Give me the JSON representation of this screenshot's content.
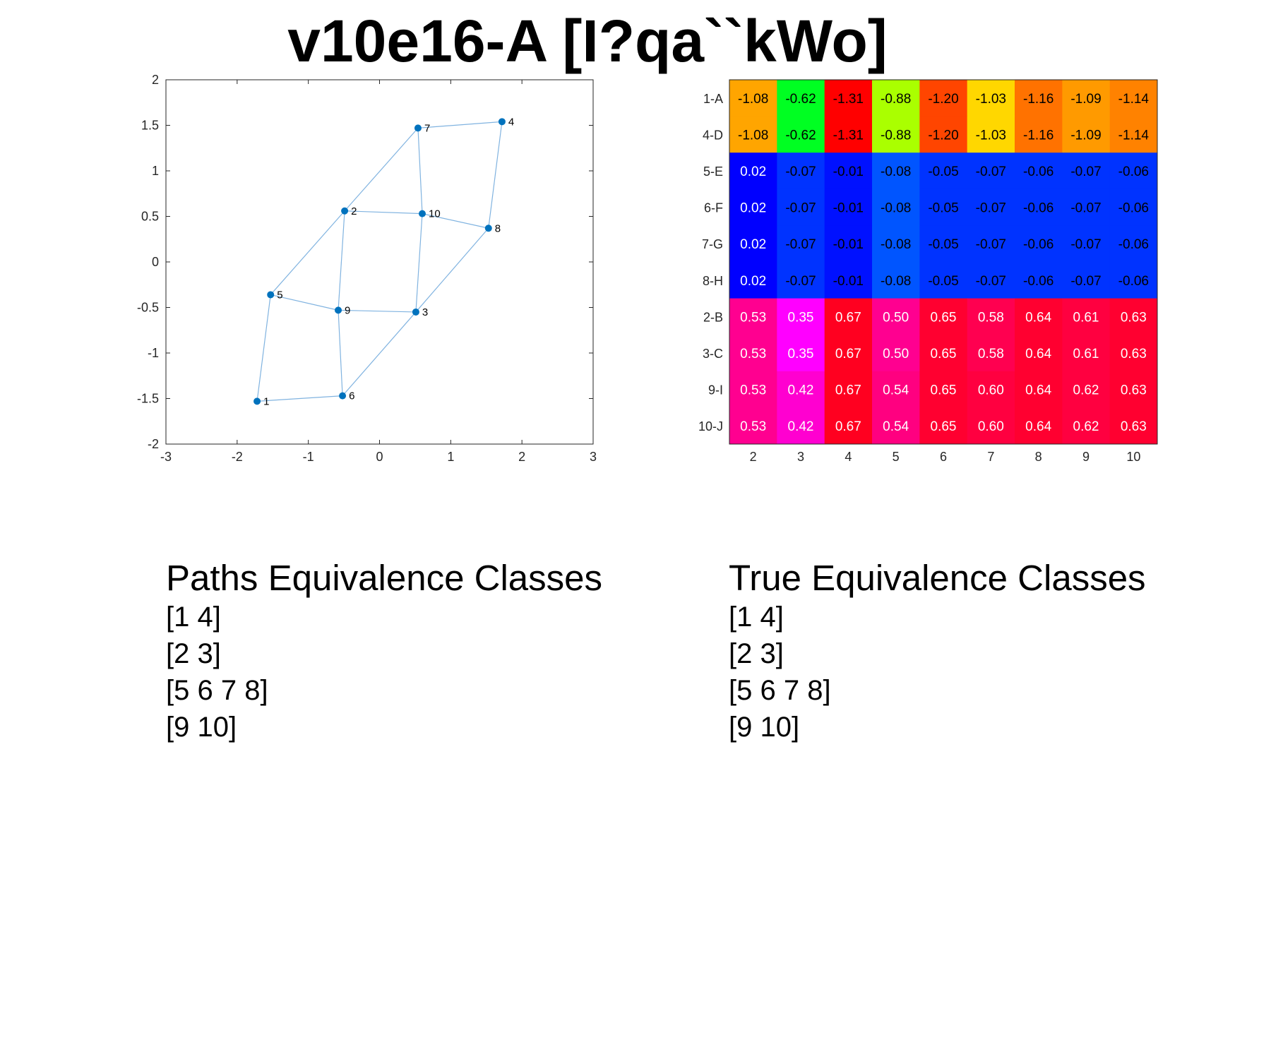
{
  "title": "v10e16-A [I?qa``kWo]",
  "chart_data": [
    {
      "type": "scatter",
      "subtype": "graph",
      "xlim": [
        -3,
        3
      ],
      "ylim": [
        -2,
        2
      ],
      "x_ticks": [
        -3,
        -2,
        -1,
        0,
        1,
        2,
        3
      ],
      "y_ticks": [
        -2,
        -1.5,
        -1,
        -0.5,
        0,
        0.5,
        1,
        1.5,
        2
      ],
      "x_tick_labels": [
        "-3",
        "-2",
        "-1",
        "0",
        "1",
        "2",
        "3"
      ],
      "y_tick_labels": [
        "-2",
        "-1.5",
        "-1",
        "-0.5",
        "0",
        "0.5",
        "1",
        "1.5",
        "2"
      ],
      "node_color": "#0072BD",
      "edge_color": "#80B3E0",
      "nodes": [
        {
          "id": "1",
          "x": -1.72,
          "y": -1.53
        },
        {
          "id": "2",
          "x": -0.49,
          "y": 0.56
        },
        {
          "id": "3",
          "x": 0.51,
          "y": -0.55
        },
        {
          "id": "4",
          "x": 1.72,
          "y": 1.54
        },
        {
          "id": "5",
          "x": -1.53,
          "y": -0.36
        },
        {
          "id": "6",
          "x": -0.52,
          "y": -1.47
        },
        {
          "id": "7",
          "x": 0.54,
          "y": 1.47
        },
        {
          "id": "8",
          "x": 1.53,
          "y": 0.37
        },
        {
          "id": "9",
          "x": -0.58,
          "y": -0.53
        },
        {
          "id": "10",
          "x": 0.6,
          "y": 0.53
        }
      ],
      "edges": [
        [
          "1",
          "5"
        ],
        [
          "1",
          "6"
        ],
        [
          "5",
          "2"
        ],
        [
          "5",
          "9"
        ],
        [
          "2",
          "7"
        ],
        [
          "2",
          "10"
        ],
        [
          "2",
          "9"
        ],
        [
          "9",
          "3"
        ],
        [
          "9",
          "6"
        ],
        [
          "6",
          "3"
        ],
        [
          "3",
          "10"
        ],
        [
          "3",
          "8"
        ],
        [
          "10",
          "7"
        ],
        [
          "10",
          "8"
        ],
        [
          "7",
          "4"
        ],
        [
          "4",
          "8"
        ]
      ]
    },
    {
      "type": "heatmap",
      "row_labels": [
        "1-A",
        "4-D",
        "5-E",
        "6-F",
        "7-G",
        "8-H",
        "2-B",
        "3-C",
        "9-I",
        "10-J"
      ],
      "col_labels": [
        "2",
        "3",
        "4",
        "5",
        "6",
        "7",
        "8",
        "9",
        "10"
      ],
      "values": [
        [
          -1.08,
          -0.62,
          -1.31,
          -0.88,
          -1.2,
          -1.03,
          -1.16,
          -1.09,
          -1.14
        ],
        [
          -1.08,
          -0.62,
          -1.31,
          -0.88,
          -1.2,
          -1.03,
          -1.16,
          -1.09,
          -1.14
        ],
        [
          0.02,
          -0.07,
          -0.01,
          -0.08,
          -0.05,
          -0.07,
          -0.06,
          -0.07,
          -0.06
        ],
        [
          0.02,
          -0.07,
          -0.01,
          -0.08,
          -0.05,
          -0.07,
          -0.06,
          -0.07,
          -0.06
        ],
        [
          0.02,
          -0.07,
          -0.01,
          -0.08,
          -0.05,
          -0.07,
          -0.06,
          -0.07,
          -0.06
        ],
        [
          0.02,
          -0.07,
          -0.01,
          -0.08,
          -0.05,
          -0.07,
          -0.06,
          -0.07,
          -0.06
        ],
        [
          0.53,
          0.35,
          0.67,
          0.5,
          0.65,
          0.58,
          0.64,
          0.61,
          0.63
        ],
        [
          0.53,
          0.35,
          0.67,
          0.5,
          0.65,
          0.58,
          0.64,
          0.61,
          0.63
        ],
        [
          0.53,
          0.42,
          0.67,
          0.54,
          0.65,
          0.6,
          0.64,
          0.62,
          0.63
        ],
        [
          0.53,
          0.42,
          0.67,
          0.54,
          0.65,
          0.6,
          0.64,
          0.62,
          0.63
        ]
      ],
      "cell_colors": [
        [
          "#FFA500",
          "#00FF22",
          "#FF0000",
          "#AAFF00",
          "#FF4500",
          "#FFD700",
          "#FF7200",
          "#FF9A00",
          "#FF8200"
        ],
        [
          "#FFA500",
          "#00FF22",
          "#FF0000",
          "#AAFF00",
          "#FF4500",
          "#FFD700",
          "#FF7200",
          "#FF9A00",
          "#FF8200"
        ],
        [
          "#0000FF",
          "#0033FF",
          "#0011FF",
          "#0055FF",
          "#0033FF",
          "#0033FF",
          "#0033FF",
          "#0033FF",
          "#0033FF"
        ],
        [
          "#0000FF",
          "#0033FF",
          "#0011FF",
          "#0055FF",
          "#0033FF",
          "#0033FF",
          "#0033FF",
          "#0033FF",
          "#0033FF"
        ],
        [
          "#0000FF",
          "#0033FF",
          "#0011FF",
          "#0055FF",
          "#0033FF",
          "#0033FF",
          "#0033FF",
          "#0033FF",
          "#0033FF"
        ],
        [
          "#0000FF",
          "#0033FF",
          "#0011FF",
          "#0055FF",
          "#0033FF",
          "#0033FF",
          "#0033FF",
          "#0033FF",
          "#0033FF"
        ],
        [
          "#FF0090",
          "#FF00FF",
          "#FF0020",
          "#FF0090",
          "#FF0030",
          "#FF0050",
          "#FF0030",
          "#FF0040",
          "#FF0030"
        ],
        [
          "#FF0090",
          "#FF00FF",
          "#FF0020",
          "#FF0090",
          "#FF0030",
          "#FF0050",
          "#FF0030",
          "#FF0040",
          "#FF0030"
        ],
        [
          "#FF0090",
          "#FF00D0",
          "#FF0020",
          "#FF0080",
          "#FF0030",
          "#FF0040",
          "#FF0030",
          "#FF0040",
          "#FF0030"
        ],
        [
          "#FF0090",
          "#FF00D0",
          "#FF0020",
          "#FF0080",
          "#FF0030",
          "#FF0040",
          "#FF0030",
          "#FF0040",
          "#FF0030"
        ]
      ],
      "text_colors": [
        [
          "#000",
          "#000",
          "#000",
          "#000",
          "#000",
          "#000",
          "#000",
          "#000",
          "#000"
        ],
        [
          "#000",
          "#000",
          "#000",
          "#000",
          "#000",
          "#000",
          "#000",
          "#000",
          "#000"
        ],
        [
          "#fff",
          "#000",
          "#000",
          "#000",
          "#000",
          "#000",
          "#000",
          "#000",
          "#000"
        ],
        [
          "#fff",
          "#000",
          "#000",
          "#000",
          "#000",
          "#000",
          "#000",
          "#000",
          "#000"
        ],
        [
          "#fff",
          "#000",
          "#000",
          "#000",
          "#000",
          "#000",
          "#000",
          "#000",
          "#000"
        ],
        [
          "#fff",
          "#000",
          "#000",
          "#000",
          "#000",
          "#000",
          "#000",
          "#000",
          "#000"
        ],
        [
          "#fff",
          "#fff",
          "#fff",
          "#fff",
          "#fff",
          "#fff",
          "#fff",
          "#fff",
          "#fff"
        ],
        [
          "#fff",
          "#fff",
          "#fff",
          "#fff",
          "#fff",
          "#fff",
          "#fff",
          "#fff",
          "#fff"
        ],
        [
          "#fff",
          "#fff",
          "#fff",
          "#fff",
          "#fff",
          "#fff",
          "#fff",
          "#fff",
          "#fff"
        ],
        [
          "#fff",
          "#fff",
          "#fff",
          "#fff",
          "#fff",
          "#fff",
          "#fff",
          "#fff",
          "#fff"
        ]
      ]
    }
  ],
  "paths_classes": {
    "heading": "Paths Equivalence Classes",
    "items": [
      "[1 4]",
      "[2 3]",
      "[5 6 7 8]",
      "[9 10]"
    ]
  },
  "true_classes": {
    "heading": "True Equivalence Classes",
    "items": [
      "[1 4]",
      "[2 3]",
      "[5 6 7 8]",
      "[9 10]"
    ]
  }
}
